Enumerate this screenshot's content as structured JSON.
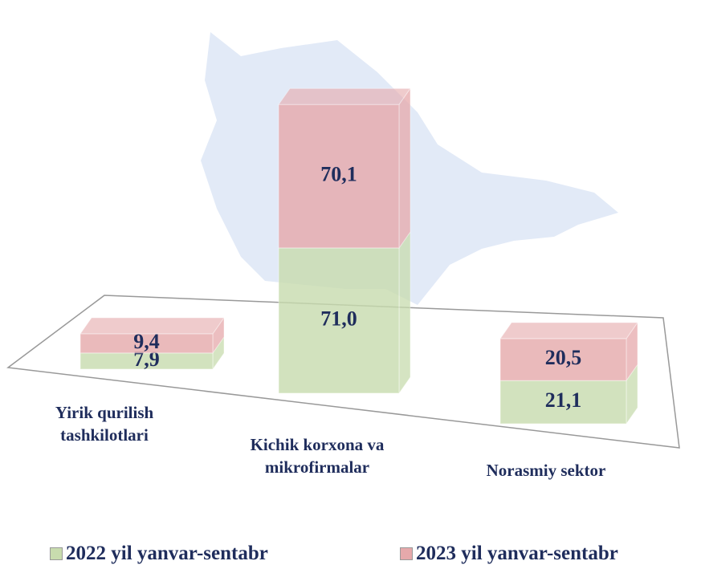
{
  "chart_data": {
    "type": "bar3d-stacked",
    "categories": [
      "Yirik qurilish tashkilotlari",
      "Kichik korxona va mikrofirmalar",
      "Norasmiy sektor"
    ],
    "series": [
      {
        "name": "2022 yil yanvar-sentabr",
        "color": "#c8dcae",
        "values": [
          7.9,
          71.0,
          21.1
        ],
        "value_labels": [
          "7,9",
          "71,0",
          "21,1"
        ]
      },
      {
        "name": "2023 yil yanvar-sentabr",
        "color": "#e6a9ab",
        "values": [
          9.4,
          70.1,
          20.5
        ],
        "value_labels": [
          "9,4",
          "70,1",
          "20,5"
        ]
      }
    ]
  }
}
